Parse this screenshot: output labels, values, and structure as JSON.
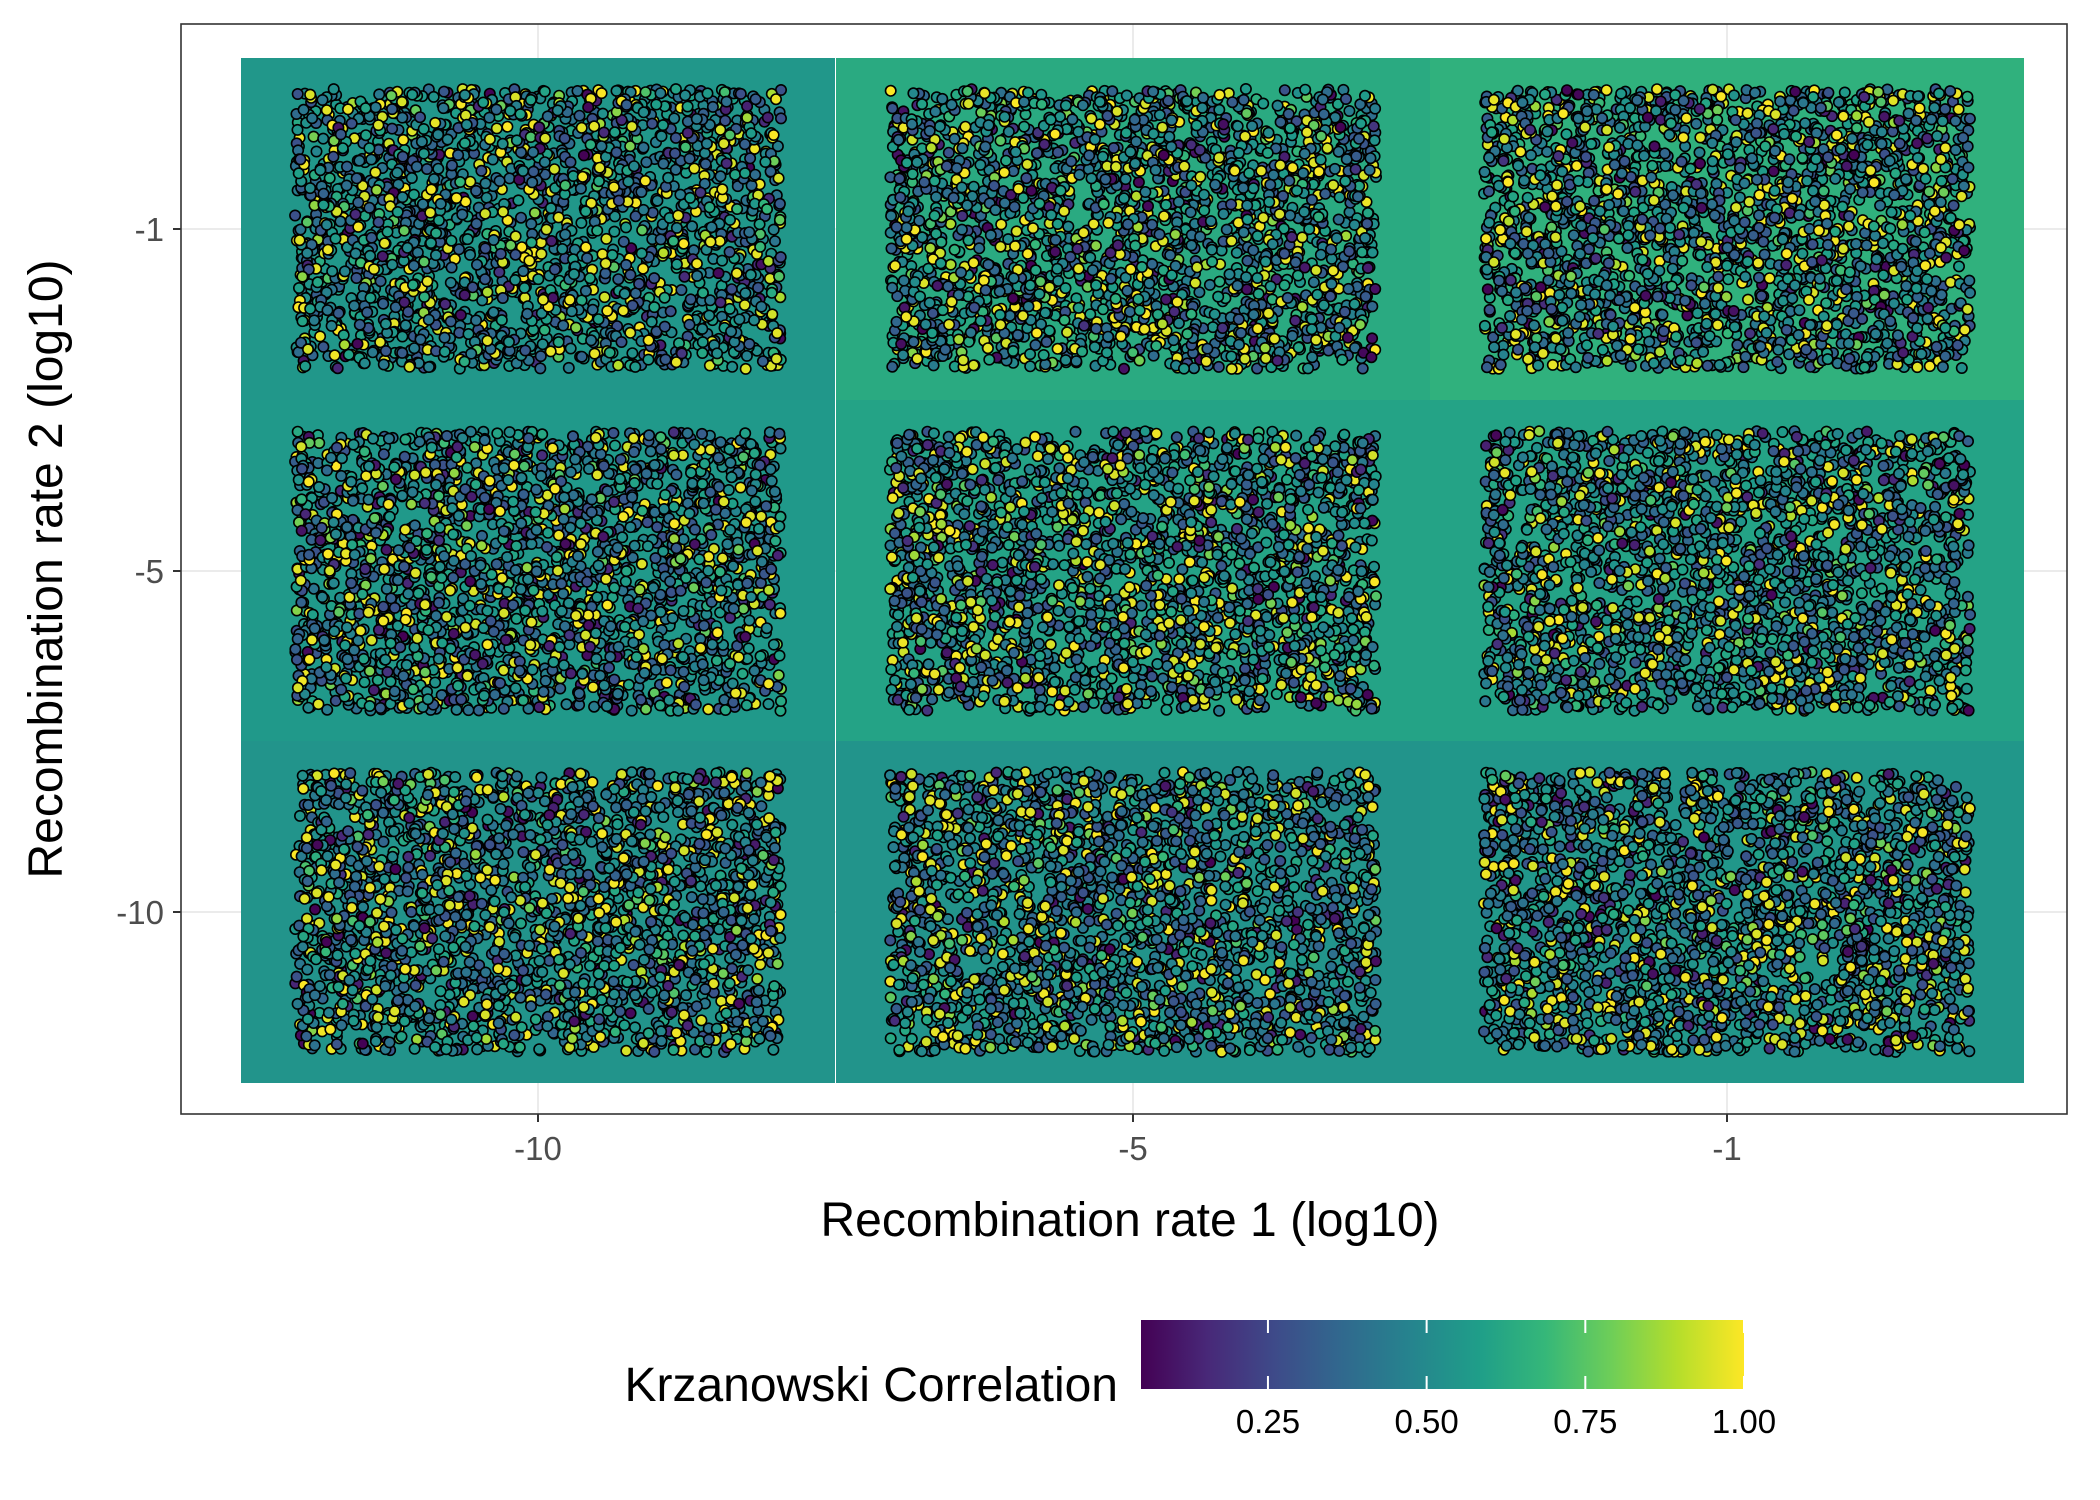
{
  "chart_data": {
    "type": "scatter",
    "title": "",
    "xlabel": "Recombination rate 1 (log10)",
    "ylabel": "Recombination rate 2 (log10)",
    "x_ticks": [
      {
        "value": -10,
        "label": "-10"
      },
      {
        "value": -5,
        "label": "-5"
      },
      {
        "value": -1,
        "label": "-1"
      }
    ],
    "y_ticks": [
      {
        "value": -1,
        "label": "-1"
      },
      {
        "value": -5,
        "label": "-5"
      },
      {
        "value": -10,
        "label": "-10"
      }
    ],
    "x_levels": [
      -10,
      -5,
      -1
    ],
    "y_levels": [
      -1,
      -5,
      -10
    ],
    "point_spread": {
      "x": 2.05,
      "y": 1.6
    },
    "tiles": [
      {
        "x": -10,
        "y": -1,
        "fill_value": 0.55
      },
      {
        "x": -5,
        "y": -1,
        "fill_value": 0.63
      },
      {
        "x": -1,
        "y": -1,
        "fill_value": 0.66
      },
      {
        "x": -10,
        "y": -5,
        "fill_value": 0.56
      },
      {
        "x": -5,
        "y": -5,
        "fill_value": 0.6
      },
      {
        "x": -1,
        "y": -5,
        "fill_value": 0.6
      },
      {
        "x": -10,
        "y": -10,
        "fill_value": 0.54
      },
      {
        "x": -5,
        "y": -10,
        "fill_value": 0.54
      },
      {
        "x": -1,
        "y": -10,
        "fill_value": 0.55
      }
    ],
    "color_scale": {
      "name": "viridis",
      "range": [
        0.05,
        1.0
      ],
      "colors": [
        "#440154",
        "#482878",
        "#3e4a89",
        "#31688e",
        "#26828e",
        "#1f9e89",
        "#35b779",
        "#6ece58",
        "#b5de2b",
        "#fde725"
      ]
    },
    "grid": true,
    "legend_position": "bottom"
  },
  "legend": {
    "title": "Krzanowski Correlation",
    "ticks": [
      {
        "value": 0.25,
        "label": "0.25"
      },
      {
        "value": 0.5,
        "label": "0.50"
      },
      {
        "value": 0.75,
        "label": "0.75"
      },
      {
        "value": 1.0,
        "label": "1.00"
      }
    ]
  }
}
